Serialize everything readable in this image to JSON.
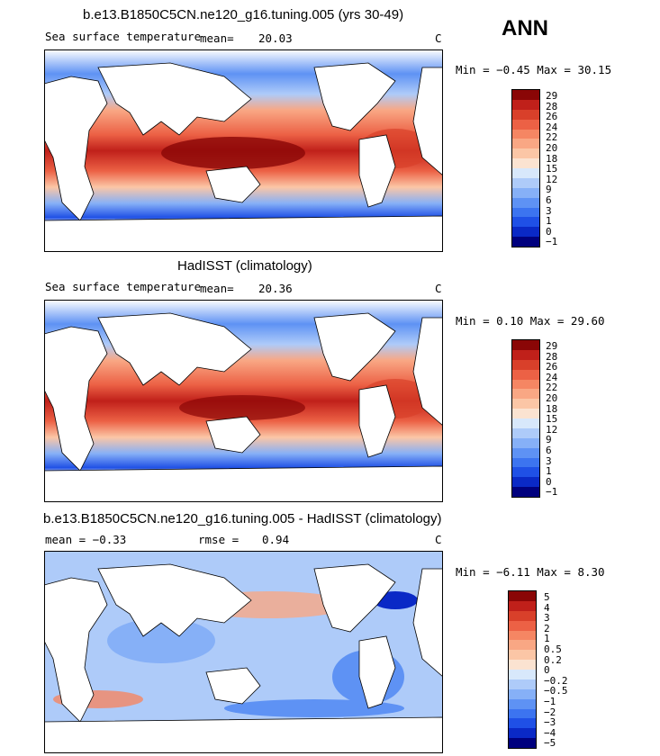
{
  "season": "ANN",
  "colors": {
    "abs_levels": [
      "#00007e",
      "#0a29c6",
      "#1f50e6",
      "#3c74f0",
      "#5e92f4",
      "#86b0f7",
      "#aecbf9",
      "#d8e8fb",
      "#fbe3d1",
      "#fbc6a6",
      "#f9a784",
      "#f58663",
      "#ec6145",
      "#d9402a",
      "#c0201a",
      "#8a0606"
    ],
    "diff_levels": [
      "#00007e",
      "#0a29c6",
      "#1f50e6",
      "#3c74f0",
      "#5e92f4",
      "#86b0f7",
      "#aecbf9",
      "#d8e8fb",
      "#fbe3d1",
      "#fbc6a6",
      "#f9a784",
      "#f58663",
      "#ec6145",
      "#d9402a",
      "#c0201a",
      "#8a0606"
    ]
  },
  "panels": [
    {
      "title": "b.e13.B1850C5CN.ne120_g16.tuning.005 (yrs 30-49)",
      "left_label": "Sea surface temperature",
      "stat_label": "mean=",
      "stat_value": "20.03",
      "units": "C",
      "minmax": "Min =  −0.45 Max =  30.15",
      "colorbar_labels": [
        "29",
        "28",
        "26",
        "24",
        "22",
        "20",
        "18",
        "15",
        "12",
        "9",
        "6",
        "3",
        "1",
        "0",
        "−1"
      ]
    },
    {
      "title": "HadISST (climatology)",
      "left_label": "Sea surface temperature",
      "stat_label": "mean=",
      "stat_value": "20.36",
      "units": "C",
      "minmax": "Min =   0.10 Max =  29.60",
      "colorbar_labels": [
        "29",
        "28",
        "26",
        "24",
        "22",
        "20",
        "18",
        "15",
        "12",
        "9",
        "6",
        "3",
        "1",
        "0",
        "−1"
      ]
    },
    {
      "title": "b.e13.B1850C5CN.ne120_g16.tuning.005 - HadISST (climatology)",
      "left_label": "mean =  −0.33",
      "stat_label": "rmse =",
      "stat_value": "0.94",
      "units": "C",
      "minmax": "Min =  −6.11 Max =   8.30",
      "colorbar_labels": [
        "5",
        "4",
        "3",
        "2",
        "1",
        "0.5",
        "0.2",
        "0",
        "−0.2",
        "−0.5",
        "−1",
        "−2",
        "−3",
        "−4",
        "−5"
      ]
    }
  ]
}
